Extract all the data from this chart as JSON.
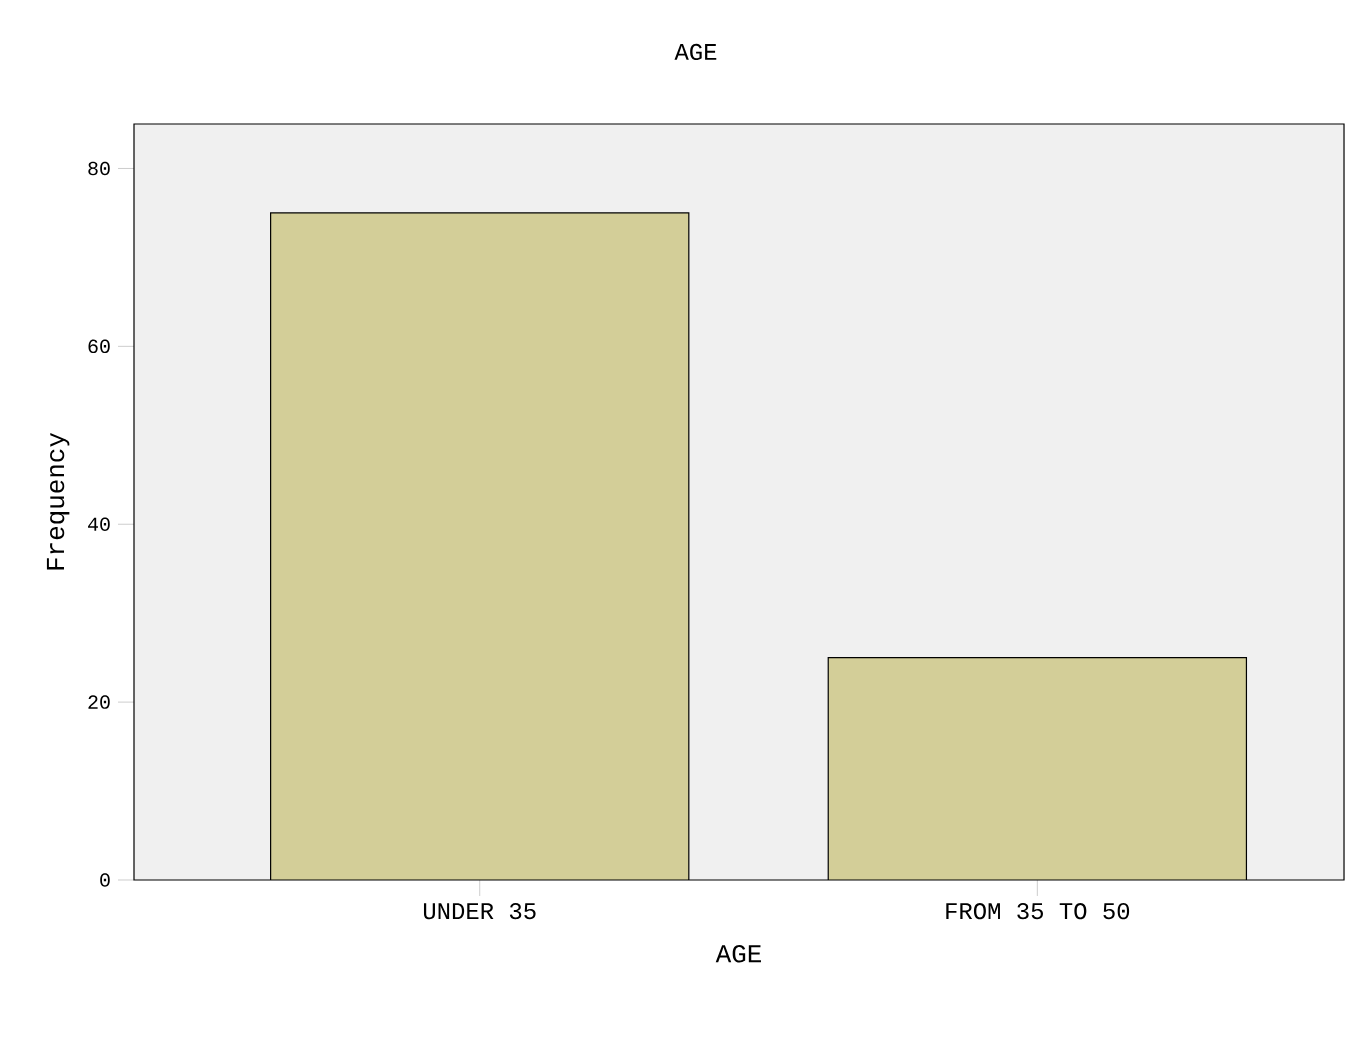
{
  "chart_data": {
    "type": "bar",
    "title": "AGE",
    "xlabel": "AGE",
    "ylabel": "Frequency",
    "categories": [
      "UNDER 35",
      "FROM 35 TO 50"
    ],
    "values": [
      75,
      25
    ],
    "color": "#d3ce98",
    "ylim": [
      0,
      85
    ],
    "yticks": [
      0,
      20,
      40,
      60,
      80
    ]
  }
}
